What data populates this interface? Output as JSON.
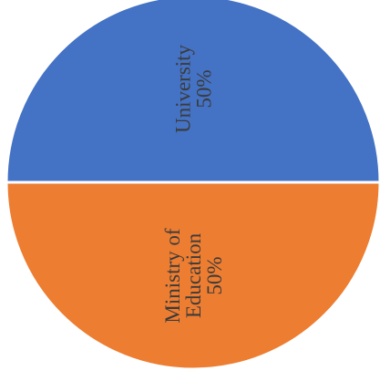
{
  "chart_data": {
    "type": "pie",
    "title": "",
    "legend": "none",
    "slices": [
      {
        "label_lines": [
          "University",
          "50%"
        ],
        "category": "University",
        "value": 50,
        "color": "#4472C4"
      },
      {
        "label_lines": [
          "Ministry of",
          "Education",
          "50%"
        ],
        "category": "Ministry of Education",
        "value": 50,
        "color": "#ED7D31"
      }
    ]
  }
}
